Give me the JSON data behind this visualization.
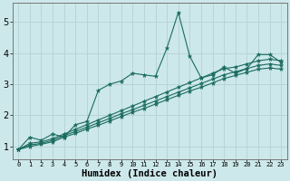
{
  "xlabel": "Humidex (Indice chaleur)",
  "ylabel": "",
  "bg_color": "#cce8ea",
  "grid_color": "#b8d4d6",
  "line_color": "#1a6b60",
  "xlim": [
    -0.5,
    23.5
  ],
  "ylim": [
    0.6,
    5.6
  ],
  "xticks": [
    0,
    1,
    2,
    3,
    4,
    5,
    6,
    7,
    8,
    9,
    10,
    11,
    12,
    13,
    14,
    15,
    16,
    17,
    18,
    19,
    20,
    21,
    22,
    23
  ],
  "yticks": [
    1,
    2,
    3,
    4,
    5
  ],
  "main_x": [
    0,
    1,
    2,
    3,
    4,
    5,
    6,
    7,
    8,
    9,
    10,
    11,
    12,
    13,
    14,
    15,
    16,
    17,
    18,
    19,
    20,
    21,
    22,
    23
  ],
  "main_y": [
    0.9,
    1.3,
    1.2,
    1.4,
    1.3,
    1.7,
    1.8,
    2.8,
    3.0,
    3.1,
    3.35,
    3.3,
    3.25,
    4.15,
    5.3,
    3.9,
    3.2,
    3.3,
    3.55,
    3.35,
    3.5,
    3.95,
    3.95,
    3.7
  ],
  "line2_x": [
    0,
    1,
    2,
    3,
    4,
    5,
    6,
    7,
    8,
    9,
    10,
    11,
    12,
    13,
    14,
    15,
    16,
    17,
    18,
    19,
    20,
    21,
    22,
    23
  ],
  "line2_y": [
    0.9,
    1.1,
    1.15,
    1.25,
    1.4,
    1.55,
    1.7,
    1.85,
    2.0,
    2.15,
    2.3,
    2.45,
    2.6,
    2.75,
    2.9,
    3.05,
    3.2,
    3.35,
    3.5,
    3.55,
    3.65,
    3.75,
    3.8,
    3.75
  ],
  "line3_x": [
    0,
    1,
    2,
    3,
    4,
    5,
    6,
    7,
    8,
    9,
    10,
    11,
    12,
    13,
    14,
    15,
    16,
    17,
    18,
    19,
    20,
    21,
    22,
    23
  ],
  "line3_y": [
    0.9,
    1.05,
    1.1,
    1.2,
    1.35,
    1.48,
    1.62,
    1.76,
    1.9,
    2.05,
    2.18,
    2.32,
    2.46,
    2.6,
    2.74,
    2.88,
    3.02,
    3.16,
    3.3,
    3.4,
    3.5,
    3.6,
    3.65,
    3.6
  ],
  "line4_x": [
    0,
    1,
    2,
    3,
    4,
    5,
    6,
    7,
    8,
    9,
    10,
    11,
    12,
    13,
    14,
    15,
    16,
    17,
    18,
    19,
    20,
    21,
    22,
    23
  ],
  "line4_y": [
    0.9,
    1.0,
    1.07,
    1.15,
    1.3,
    1.42,
    1.56,
    1.68,
    1.82,
    1.96,
    2.1,
    2.22,
    2.36,
    2.5,
    2.64,
    2.78,
    2.9,
    3.04,
    3.18,
    3.28,
    3.38,
    3.48,
    3.52,
    3.48
  ]
}
